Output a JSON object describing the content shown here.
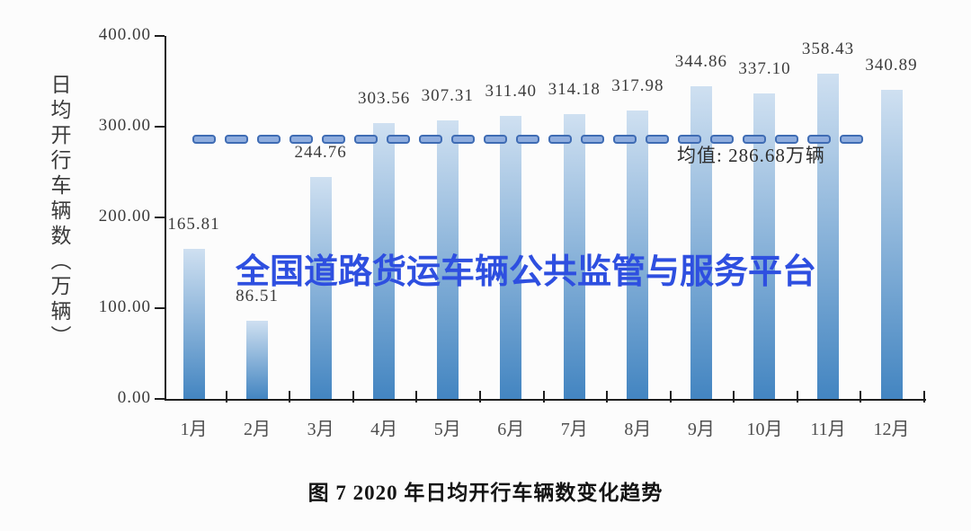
{
  "chart_data": {
    "type": "bar",
    "title": "图 7  2020 年日均开行车辆数变化趋势",
    "ylabel": "日均开行车辆数（万辆）",
    "xlabel": "",
    "categories": [
      "1月",
      "2月",
      "3月",
      "4月",
      "5月",
      "6月",
      "7月",
      "8月",
      "9月",
      "10月",
      "11月",
      "12月"
    ],
    "values": [
      165.81,
      86.51,
      244.76,
      303.56,
      307.31,
      311.4,
      314.18,
      317.98,
      344.86,
      337.1,
      358.43,
      340.89
    ],
    "value_labels": [
      "165.81",
      "86.51",
      "244.76",
      "303.56",
      "307.31",
      "311.40",
      "314.18",
      "317.98",
      "344.86",
      "337.10",
      "358.43",
      "340.89"
    ],
    "mean_line": {
      "value": 286.68,
      "label": "均值: 286.68万辆",
      "style": "dashed"
    },
    "ylim": [
      0,
      400
    ],
    "ytick_values": [
      400,
      300,
      200,
      100,
      0
    ],
    "ytick_labels": [
      "400.00",
      "300.00",
      "200.00",
      "100.00",
      "0.00"
    ],
    "grid": false,
    "legend": "none",
    "watermark": "全国道路货运车辆公共监管与服务平台",
    "colors": {
      "bar_gradient_top": "#cfe0f1",
      "bar_gradient_bottom": "#4385c1",
      "mean_dash_fill": "#8fadde",
      "mean_dash_border": "#3f6cb4",
      "watermark_text": "#2e4fe0",
      "axis": "#1f1f1f"
    }
  }
}
